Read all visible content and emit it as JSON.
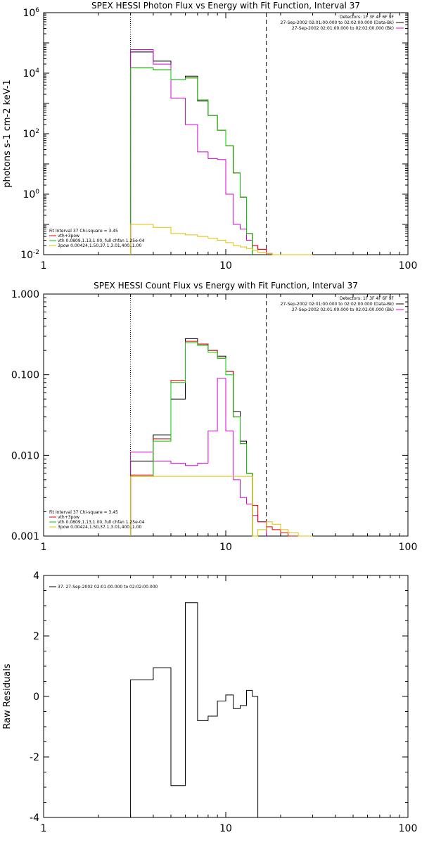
{
  "colors": {
    "black": "#000000",
    "red": "#dd0000",
    "green": "#00cc00",
    "magenta": "#dd00dd",
    "yellow": "#e0c000"
  },
  "chart_data": [
    {
      "type": "line",
      "title": "SPEX HESSI Photon Flux vs Energy with Fit Function, Interval 37",
      "xlabel": "",
      "ylabel": "photons s-1 cm-2 keV-1",
      "xscale": "log",
      "yscale": "log",
      "xlim": [
        1,
        100
      ],
      "ylim": [
        0.01,
        1000000
      ],
      "xticks": [
        {
          "v": 1,
          "t": "1"
        },
        {
          "v": 10,
          "t": "10"
        },
        {
          "v": 100,
          "t": "100"
        }
      ],
      "yticks": [
        {
          "v": 0.01,
          "t": "10-2"
        },
        {
          "v": 1,
          "t": "100"
        },
        {
          "v": 100,
          "t": "102"
        },
        {
          "v": 10000,
          "t": "104"
        },
        {
          "v": 1000000,
          "t": "106"
        }
      ],
      "vlines": [
        {
          "x": 3.0,
          "style": "dotted"
        },
        {
          "x": 16.7,
          "style": "dashed"
        }
      ],
      "legend_right": [
        "Detectors: 1F 3F 4F 6F 9F",
        "27-Sep-2002 02:01:00.000 to 02:02:00.000 (Data-Bk)",
        "27-Sep-2002 02:01:00.000 to 02:02:00.000 (Bk)"
      ],
      "legend_left": [
        "Fit Interval 37    Chi-square = 3.45",
        "vth+3pow",
        "vth 0.0809,1.13,1.00, full chfan 1.25e-04",
        "3pow 0.00424,1.50,37.1,3.01,400.,1.00"
      ],
      "edges": [
        3,
        4,
        5,
        6,
        7,
        8,
        9,
        10,
        11,
        12,
        13,
        14,
        15,
        16.7,
        18,
        20,
        22,
        25,
        30
      ],
      "series": [
        {
          "name": "27-Sep-2002 02:01:00.000 to 02:02:00.000 (Data-Bk)",
          "color": "black",
          "values": [
            50000,
            25000,
            6000,
            8000,
            1200,
            400,
            130,
            40,
            5,
            0.8,
            0.05
          ]
        },
        {
          "name": "27-Sep-2002 02:01:00.000 to 02:02:00.000 (Bk)",
          "color": "magenta",
          "values": [
            60000,
            20000,
            1500,
            200,
            25,
            15,
            14,
            1,
            0.1,
            0.07,
            0.03,
            0.02,
            0.015
          ]
        },
        {
          "name": "vth+3pow",
          "color": "red",
          "values": [
            15000,
            13000,
            6000,
            7000,
            1300,
            400,
            130,
            40,
            5,
            0.8,
            0.05,
            0.02,
            0.015,
            0.011,
            0.01,
            0.009,
            0.008,
            0.007
          ]
        },
        {
          "name": "vth 0.0809,1.13,1.00, full chfan 1.25e-04",
          "color": "green",
          "values": [
            15000,
            13000,
            6000,
            7000,
            1300,
            400,
            130,
            40,
            5,
            0.8,
            0.05
          ]
        },
        {
          "name": "3pow 0.00424,1.50,37.1,3.01,400.,1.00",
          "color": "yellow",
          "values": [
            0.1,
            0.08,
            0.05,
            0.045,
            0.04,
            0.035,
            0.03,
            0.025,
            0.02,
            0.018,
            0.016,
            0.014,
            0.012,
            0.011,
            0.01,
            0.009,
            0.008,
            0.007
          ]
        }
      ]
    },
    {
      "type": "line",
      "title": "SPEX HESSI Count Flux vs Energy with Fit Function, Interval 37",
      "xlabel": "",
      "ylabel": "",
      "xscale": "log",
      "yscale": "log",
      "xlim": [
        1,
        100
      ],
      "ylim": [
        0.001,
        1.0
      ],
      "xticks": [
        {
          "v": 1,
          "t": "1"
        },
        {
          "v": 10,
          "t": "10"
        },
        {
          "v": 100,
          "t": "100"
        }
      ],
      "yticks": [
        {
          "v": 0.001,
          "t": "0.001"
        },
        {
          "v": 0.01,
          "t": "0.010"
        },
        {
          "v": 0.1,
          "t": "0.100"
        },
        {
          "v": 1.0,
          "t": "1.000"
        }
      ],
      "vlines": [
        {
          "x": 3.0,
          "style": "dotted"
        },
        {
          "x": 16.7,
          "style": "dashed"
        }
      ],
      "legend_right": [
        "Detectors: 1F 3F 4F 6F 9F",
        "27-Sep-2002 02:01:00.000 to 02:02:00.000 (Data-Bk)",
        "27-Sep-2002 02:01:00.000 to 02:02:00.000 (Bk)"
      ],
      "legend_left": [
        "Fit Interval 37    Chi-square = 3.45",
        "vth+3pow",
        "vth 0.0809,1.13,1.00, full chfan 1.25e-04",
        "3pow 0.00424,1.50,37.1,3.01,400.,1.00"
      ],
      "edges": [
        3,
        4,
        5,
        6,
        7,
        8,
        9,
        10,
        11,
        12,
        13,
        14,
        15,
        16.7,
        18,
        20,
        22,
        25,
        30,
        35
      ],
      "series": [
        {
          "name": "27-Sep-2002 02:01:00.000 to 02:02:00.000 (Data-Bk)",
          "color": "black",
          "values": [
            0.0085,
            0.018,
            0.05,
            0.28,
            0.24,
            0.2,
            0.17,
            0.11,
            0.035,
            0.015,
            0.006
          ]
        },
        {
          "name": "27-Sep-2002 02:01:00.000 to 02:02:00.000 (Bk)",
          "color": "magenta",
          "values": [
            0.011,
            0.0085,
            0.008,
            0.0075,
            0.008,
            0.02,
            0.09,
            0.02,
            0.005,
            0.003,
            0.0025,
            0.0018,
            0.0015
          ]
        },
        {
          "name": "vth+3pow",
          "color": "red",
          "values": [
            0.0057,
            0.016,
            0.085,
            0.26,
            0.24,
            0.2,
            0.16,
            0.11,
            0.03,
            0.014,
            0.006,
            0.0024,
            0.0015,
            0.0013,
            0.0012,
            0.0011,
            0.001
          ]
        },
        {
          "name": "vth 0.0809,1.13,1.00, full chfan 1.25e-04",
          "color": "green",
          "values": [
            0.0055,
            0.015,
            0.08,
            0.25,
            0.23,
            0.19,
            0.16,
            0.1,
            0.03,
            0.014,
            0.006
          ]
        },
        {
          "name": "3pow 0.00424,1.50,37.1,3.01,400.,1.00",
          "color": "yellow",
          "values": [
            0.0055,
            0.0055,
            0.0055,
            0.0055,
            0.0055,
            0.0055,
            0.0055,
            0.0055,
            0.0055,
            0.0055,
            0.0055,
            0.001,
            0.0012,
            0.0015,
            0.0014,
            0.0012,
            0.0011,
            0.001
          ]
        }
      ]
    },
    {
      "type": "line",
      "title": "",
      "xlabel": "",
      "ylabel": "Raw Residuals",
      "xscale": "log",
      "yscale": "linear",
      "xlim": [
        1,
        100
      ],
      "ylim": [
        -4,
        4
      ],
      "xticks": [
        {
          "v": 1,
          "t": "1"
        },
        {
          "v": 10,
          "t": "10"
        },
        {
          "v": 100,
          "t": "100"
        }
      ],
      "yticks": [
        {
          "v": -4,
          "t": "-4"
        },
        {
          "v": -2,
          "t": "-2"
        },
        {
          "v": 0,
          "t": "0"
        },
        {
          "v": 2,
          "t": "2"
        },
        {
          "v": 4,
          "t": "4"
        }
      ],
      "vlines": [],
      "legend_right": [],
      "legend_left": [
        "37. 27-Sep-2002 02:01:00.000 to 02:02:00.000"
      ],
      "edges": [
        3,
        4,
        5,
        6,
        7,
        8,
        9,
        10,
        11,
        12,
        13,
        14,
        15,
        16.7
      ],
      "series": [
        {
          "name": "37. 27-Sep-2002 02:01:00.000 to 02:02:00.000",
          "color": "black",
          "values": [
            0.55,
            0.95,
            -2.95,
            3.1,
            -0.8,
            -0.65,
            -0.15,
            0.05,
            -0.4,
            -0.3,
            0.2,
            0.0
          ]
        }
      ]
    }
  ]
}
